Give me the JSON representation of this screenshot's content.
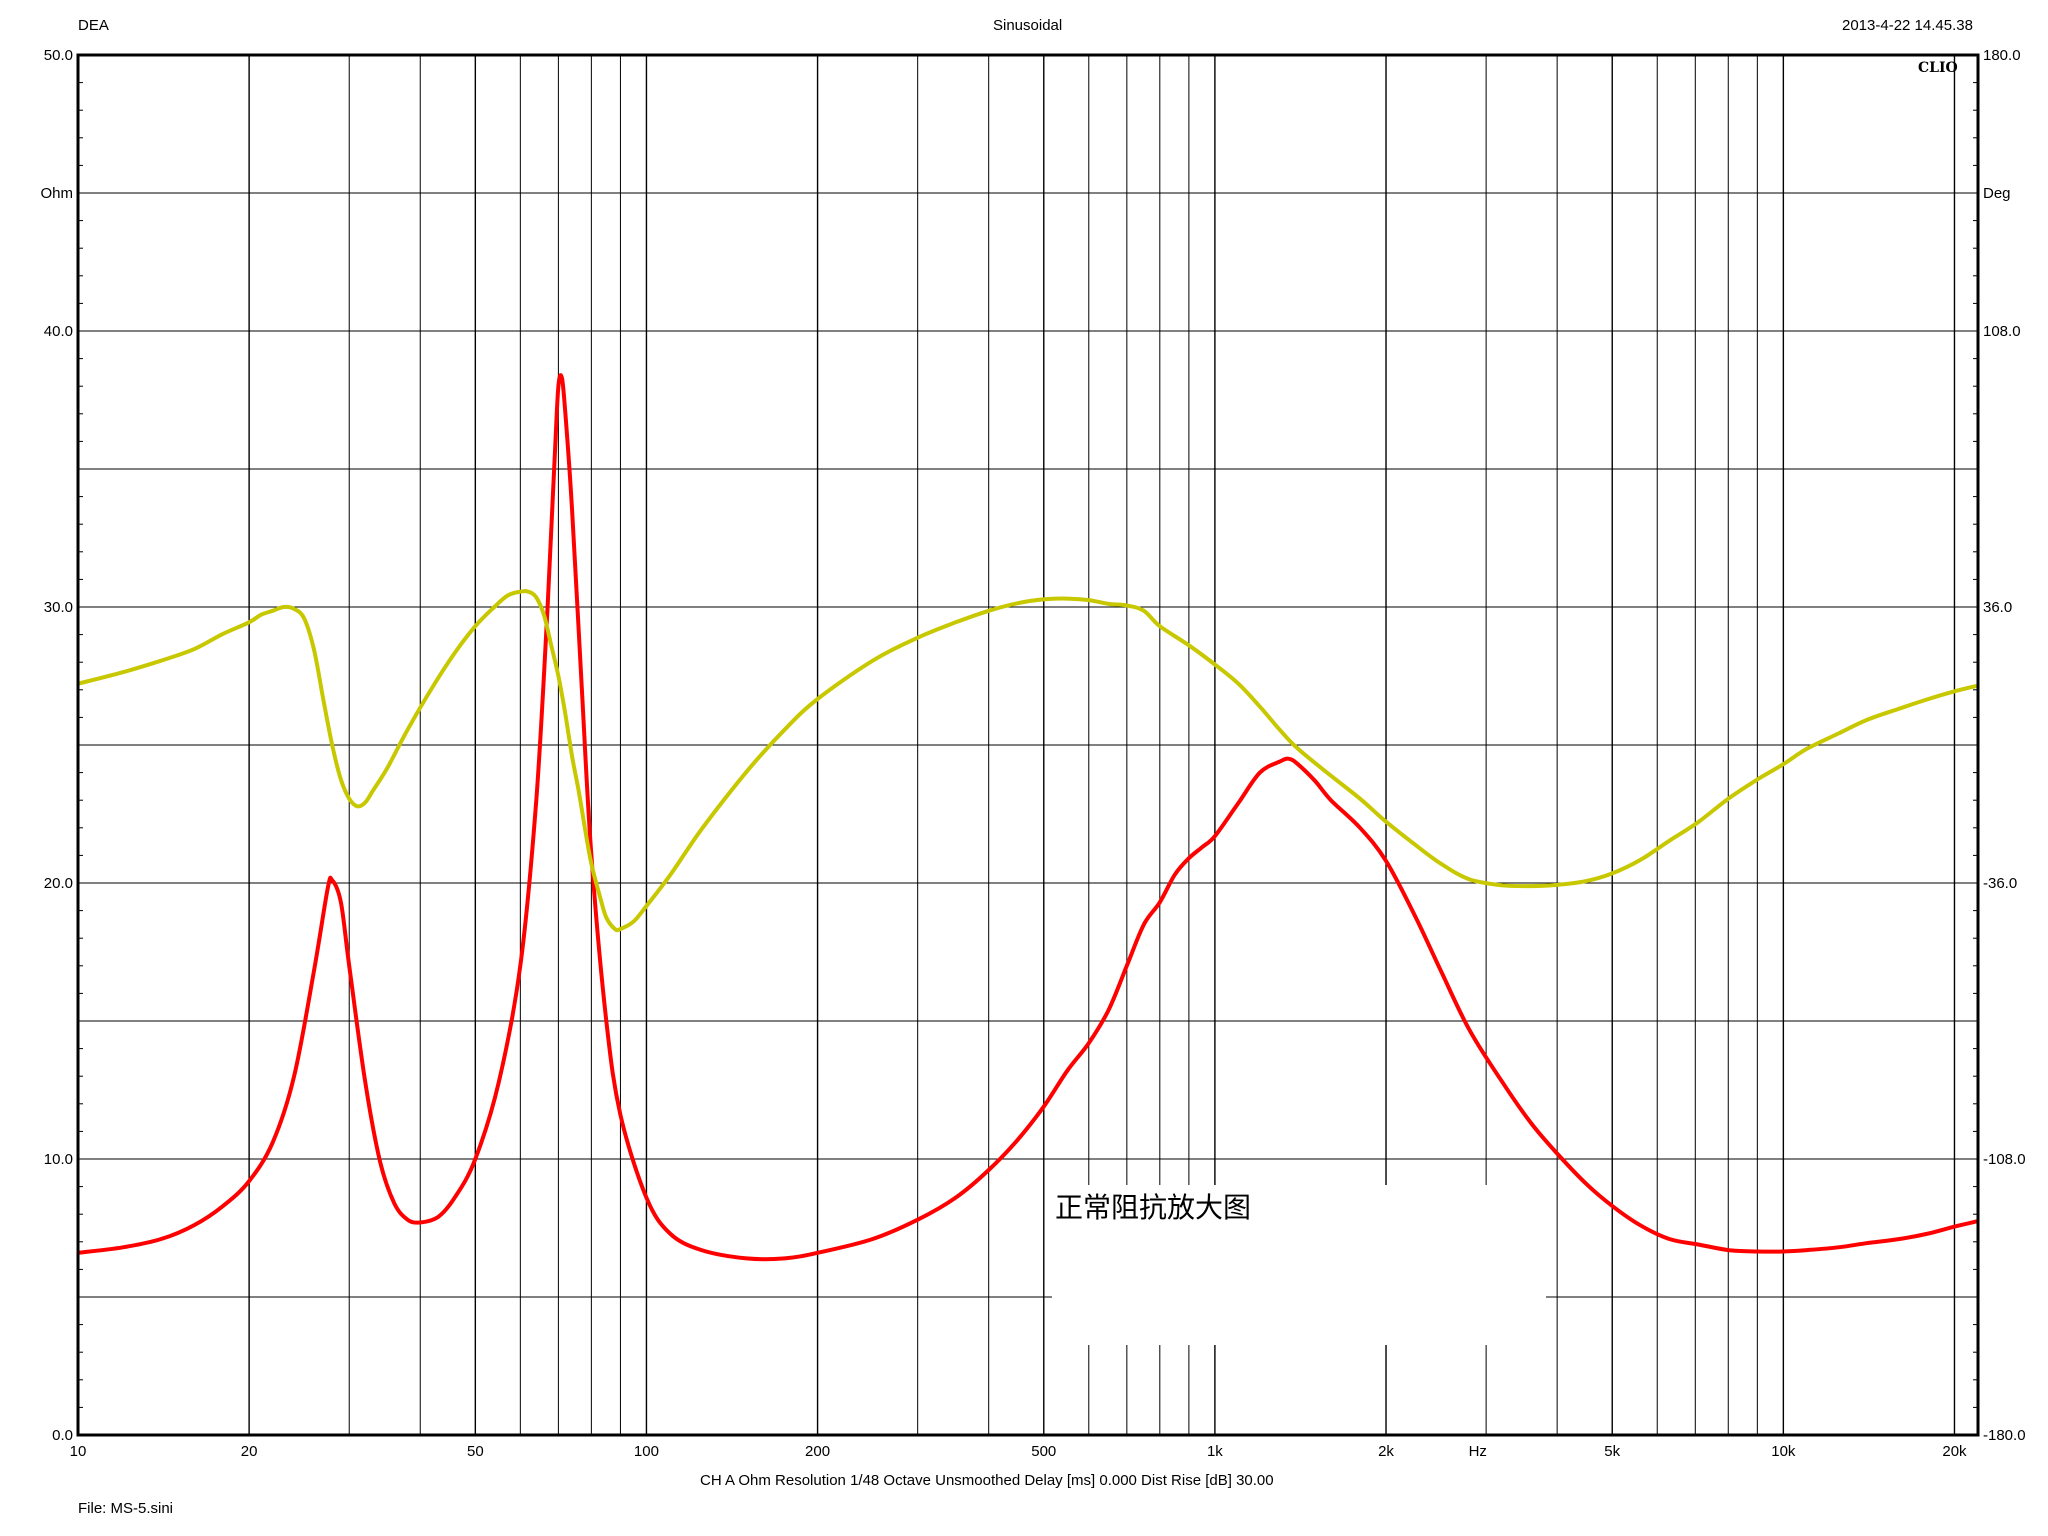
{
  "header": {
    "left": "DEA",
    "center": "Sinusoidal",
    "right": "2013-4-22 14.45.38"
  },
  "brand": "CLIO",
  "annotation": "正常阻抗放大图",
  "footer": {
    "settings": "CH A   Ohm   Resolution 1/48 Octave   Unsmoothed   Delay [ms] 0.000   Dist Rise [dB] 30.00",
    "file": "File: MS-5.sini"
  },
  "colors": {
    "background": "#ffffff",
    "grid": "#000000",
    "impedance": "#ff0000",
    "phase": "#c8c800"
  },
  "chart_data": {
    "type": "line",
    "xscale": "log",
    "xlim": [
      10,
      22000
    ],
    "grid": true,
    "x_ticks": [
      {
        "value": 10,
        "label": "10"
      },
      {
        "value": 20,
        "label": "20"
      },
      {
        "value": 50,
        "label": "50"
      },
      {
        "value": 100,
        "label": "100"
      },
      {
        "value": 200,
        "label": "200"
      },
      {
        "value": 500,
        "label": "500"
      },
      {
        "value": 1000,
        "label": "1k"
      },
      {
        "value": 2000,
        "label": "2k"
      },
      {
        "value": 5000,
        "label": "5k"
      },
      {
        "value": 10000,
        "label": "10k"
      },
      {
        "value": 20000,
        "label": "20k"
      }
    ],
    "x_unit_label": "Hz",
    "y_left": {
      "unit": "Ohm",
      "lim": [
        0,
        50
      ],
      "ticks": [
        {
          "value": 0,
          "label": "0.0"
        },
        {
          "value": 10,
          "label": "10.0"
        },
        {
          "value": 20,
          "label": "20.0"
        },
        {
          "value": 30,
          "label": "30.0"
        },
        {
          "value": 40,
          "label": "40.0"
        },
        {
          "value": 50,
          "label": "50.0"
        }
      ]
    },
    "y_right": {
      "unit": "Deg",
      "lim": [
        -180,
        180
      ],
      "ticks": [
        {
          "value": 180,
          "label": "180.0"
        },
        {
          "value": 108,
          "label": "108.0"
        },
        {
          "value": 36,
          "label": "36.0"
        },
        {
          "value": -36,
          "label": "-36.0"
        },
        {
          "value": -108,
          "label": "-108.0"
        },
        {
          "value": -180,
          "label": "-180.0"
        }
      ]
    },
    "series": [
      {
        "axis": "left",
        "color": "#ff0000",
        "points": [
          [
            10,
            6.6
          ],
          [
            12,
            6.8
          ],
          [
            14,
            7.1
          ],
          [
            16,
            7.6
          ],
          [
            18,
            8.3
          ],
          [
            20,
            9.2
          ],
          [
            22,
            10.6
          ],
          [
            24,
            13.0
          ],
          [
            26,
            16.8
          ],
          [
            27.5,
            19.8
          ],
          [
            28,
            20.1
          ],
          [
            29,
            19.3
          ],
          [
            30,
            17.0
          ],
          [
            32,
            12.8
          ],
          [
            34,
            9.9
          ],
          [
            36,
            8.4
          ],
          [
            38,
            7.8
          ],
          [
            40,
            7.7
          ],
          [
            43,
            7.9
          ],
          [
            46,
            8.6
          ],
          [
            50,
            10.0
          ],
          [
            55,
            12.8
          ],
          [
            60,
            17.0
          ],
          [
            64,
            23.0
          ],
          [
            67,
            30.0
          ],
          [
            69,
            35.5
          ],
          [
            70,
            38.0
          ],
          [
            71,
            38.3
          ],
          [
            72,
            37.0
          ],
          [
            74,
            33.5
          ],
          [
            77,
            27.0
          ],
          [
            80,
            21.0
          ],
          [
            85,
            15.0
          ],
          [
            90,
            11.6
          ],
          [
            100,
            8.6
          ],
          [
            110,
            7.3
          ],
          [
            125,
            6.7
          ],
          [
            150,
            6.4
          ],
          [
            175,
            6.4
          ],
          [
            200,
            6.6
          ],
          [
            250,
            7.1
          ],
          [
            300,
            7.8
          ],
          [
            350,
            8.6
          ],
          [
            400,
            9.6
          ],
          [
            450,
            10.7
          ],
          [
            500,
            11.9
          ],
          [
            550,
            13.2
          ],
          [
            600,
            14.2
          ],
          [
            650,
            15.4
          ],
          [
            700,
            17.0
          ],
          [
            750,
            18.5
          ],
          [
            800,
            19.3
          ],
          [
            850,
            20.3
          ],
          [
            900,
            20.9
          ],
          [
            950,
            21.3
          ],
          [
            1000,
            21.7
          ],
          [
            1100,
            22.9
          ],
          [
            1200,
            24.0
          ],
          [
            1300,
            24.4
          ],
          [
            1350,
            24.5
          ],
          [
            1400,
            24.3
          ],
          [
            1500,
            23.7
          ],
          [
            1600,
            23.0
          ],
          [
            1800,
            22.0
          ],
          [
            2000,
            20.8
          ],
          [
            2250,
            18.8
          ],
          [
            2500,
            16.8
          ],
          [
            2800,
            14.7
          ],
          [
            3200,
            12.8
          ],
          [
            3600,
            11.3
          ],
          [
            4000,
            10.2
          ],
          [
            4500,
            9.1
          ],
          [
            5000,
            8.3
          ],
          [
            5600,
            7.6
          ],
          [
            6300,
            7.1
          ],
          [
            7100,
            6.9
          ],
          [
            8000,
            6.7
          ],
          [
            9000,
            6.65
          ],
          [
            10000,
            6.65
          ],
          [
            11000,
            6.7
          ],
          [
            12500,
            6.8
          ],
          [
            14000,
            6.95
          ],
          [
            16000,
            7.1
          ],
          [
            18000,
            7.3
          ],
          [
            20000,
            7.55
          ],
          [
            22000,
            7.75
          ]
        ]
      },
      {
        "axis": "right",
        "color": "#c8c800",
        "points": [
          [
            10,
            16
          ],
          [
            12,
            19
          ],
          [
            14,
            22
          ],
          [
            16,
            25
          ],
          [
            18,
            29
          ],
          [
            20,
            32
          ],
          [
            21,
            34
          ],
          [
            22,
            35
          ],
          [
            23,
            36
          ],
          [
            24,
            35.5
          ],
          [
            25,
            33
          ],
          [
            26,
            25
          ],
          [
            27,
            12
          ],
          [
            28,
            0
          ],
          [
            29,
            -9
          ],
          [
            30,
            -14
          ],
          [
            31,
            -16
          ],
          [
            32,
            -15
          ],
          [
            33,
            -12
          ],
          [
            35,
            -6
          ],
          [
            38,
            4
          ],
          [
            42,
            15
          ],
          [
            46,
            24
          ],
          [
            50,
            31
          ],
          [
            54,
            36
          ],
          [
            57,
            39
          ],
          [
            60,
            40
          ],
          [
            62,
            40
          ],
          [
            64,
            38.5
          ],
          [
            66,
            34
          ],
          [
            68,
            26
          ],
          [
            70,
            18
          ],
          [
            72,
            8
          ],
          [
            74,
            -3
          ],
          [
            76,
            -12
          ],
          [
            78,
            -22
          ],
          [
            80,
            -31
          ],
          [
            83,
            -40
          ],
          [
            85,
            -45
          ],
          [
            88,
            -48
          ],
          [
            90,
            -48
          ],
          [
            95,
            -46
          ],
          [
            100,
            -42
          ],
          [
            110,
            -34
          ],
          [
            125,
            -22
          ],
          [
            150,
            -7
          ],
          [
            175,
            4
          ],
          [
            200,
            12
          ],
          [
            250,
            22
          ],
          [
            300,
            28
          ],
          [
            350,
            32
          ],
          [
            400,
            35
          ],
          [
            450,
            37
          ],
          [
            500,
            38
          ],
          [
            550,
            38.2
          ],
          [
            600,
            37.8
          ],
          [
            650,
            36.8
          ],
          [
            700,
            36.4
          ],
          [
            750,
            35
          ],
          [
            800,
            31
          ],
          [
            900,
            26
          ],
          [
            1000,
            21
          ],
          [
            1100,
            16
          ],
          [
            1200,
            10
          ],
          [
            1300,
            4
          ],
          [
            1400,
            -1
          ],
          [
            1600,
            -8
          ],
          [
            1800,
            -14
          ],
          [
            2000,
            -20
          ],
          [
            2250,
            -26
          ],
          [
            2500,
            -31
          ],
          [
            2800,
            -35
          ],
          [
            3200,
            -36.6
          ],
          [
            3600,
            -36.8
          ],
          [
            4000,
            -36.5
          ],
          [
            4500,
            -35.5
          ],
          [
            5000,
            -33.5
          ],
          [
            5600,
            -30
          ],
          [
            6300,
            -25
          ],
          [
            7100,
            -20
          ],
          [
            8000,
            -14
          ],
          [
            9000,
            -9
          ],
          [
            10000,
            -5
          ],
          [
            11000,
            -1
          ],
          [
            12500,
            3
          ],
          [
            14000,
            6.5
          ],
          [
            16000,
            9.5
          ],
          [
            18000,
            12
          ],
          [
            20000,
            14
          ],
          [
            22000,
            15.5
          ]
        ]
      }
    ]
  }
}
